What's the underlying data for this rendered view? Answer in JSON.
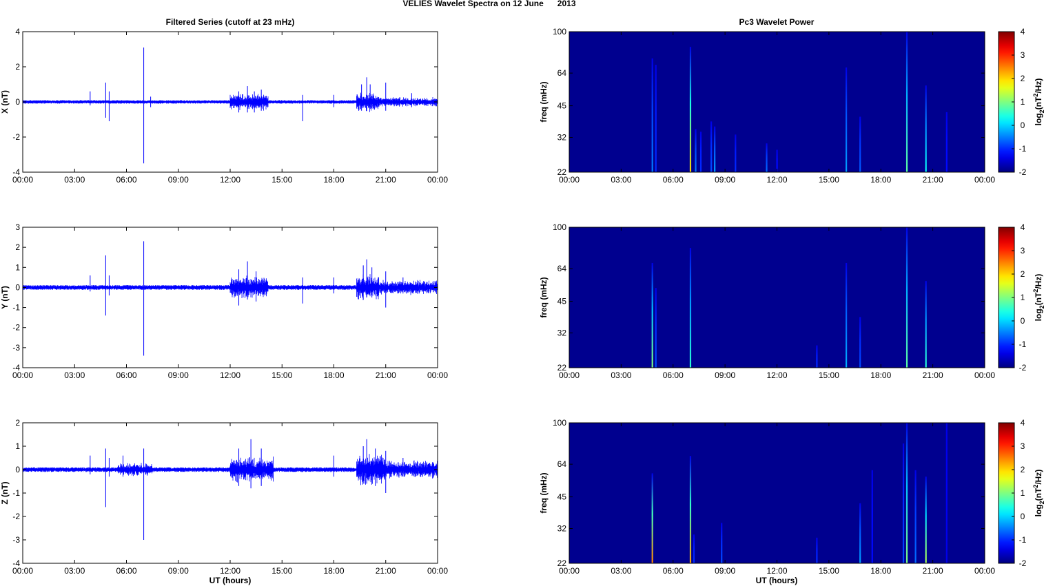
{
  "figure": {
    "title": "VELIES Wavelet Spectra on 12 June      2013",
    "left_column_title": "Filtered Series (cutoff at 23 mHz)",
    "right_column_title": "Pc3 Wavelet Power",
    "x_label": "UT (hours)",
    "x_ticks": [
      "00:00",
      "03:00",
      "06:00",
      "09:00",
      "12:00",
      "15:00",
      "18:00",
      "21:00",
      "00:00"
    ],
    "freq_label": "freq (mHz)",
    "freq_ticks": [
      "100",
      "64",
      "45",
      "32",
      "22"
    ],
    "colorbar_label": "log2(nT2/Hz)",
    "colorbar_ticks": [
      "4",
      "3",
      "2",
      "1",
      "0",
      "-1",
      "-2"
    ]
  },
  "colors": {
    "series": "#0000ff",
    "spectrum_background": "#00008f",
    "colormap": "jet"
  },
  "chart_data": [
    {
      "type": "line",
      "panel": "X",
      "ylabel": "X (nT)",
      "yticks": [
        "4",
        "2",
        "0",
        "-2",
        "-4"
      ],
      "ylim": [
        -4,
        4
      ],
      "xlim_hours": [
        0,
        24
      ],
      "baseline_noise_nT": 0.1,
      "spikes": [
        {
          "t": 3.9,
          "hi": 0.6,
          "lo": -0.2
        },
        {
          "t": 4.8,
          "hi": 1.1,
          "lo": -0.9
        },
        {
          "t": 5.0,
          "hi": 0.6,
          "lo": -1.1
        },
        {
          "t": 7.0,
          "hi": 3.1,
          "lo": -3.5
        },
        {
          "t": 7.4,
          "hi": 0.3,
          "lo": -0.3
        },
        {
          "t": 12.5,
          "hi": 0.6,
          "lo": -0.6
        },
        {
          "t": 13.0,
          "hi": 0.9,
          "lo": -0.6
        },
        {
          "t": 13.4,
          "hi": 0.6,
          "lo": -0.6
        },
        {
          "t": 13.8,
          "hi": 0.7,
          "lo": -0.5
        },
        {
          "t": 16.2,
          "hi": 0.4,
          "lo": -1.1
        },
        {
          "t": 18.0,
          "hi": 0.4,
          "lo": -0.3
        },
        {
          "t": 19.6,
          "hi": 1.0,
          "lo": -0.5
        },
        {
          "t": 19.9,
          "hi": 1.4,
          "lo": -0.5
        },
        {
          "t": 20.1,
          "hi": 1.0,
          "lo": -0.4
        },
        {
          "t": 21.0,
          "hi": 1.1,
          "lo": -0.5
        },
        {
          "t": 22.5,
          "hi": 0.5,
          "lo": -0.3
        }
      ],
      "bursts": [
        {
          "t0": 12.0,
          "t1": 14.2,
          "amp": 0.5
        },
        {
          "t0": 19.3,
          "t1": 20.6,
          "amp": 0.6
        },
        {
          "t0": 20.6,
          "t1": 24.0,
          "amp": 0.3
        }
      ]
    },
    {
      "type": "line",
      "panel": "Y",
      "ylabel": "Y (nT)",
      "yticks": [
        "3",
        "2",
        "1",
        "0",
        "-1",
        "-2",
        "-3",
        "-4"
      ],
      "ylim": [
        -4,
        3
      ],
      "xlim_hours": [
        0,
        24
      ],
      "baseline_noise_nT": 0.12,
      "spikes": [
        {
          "t": 3.9,
          "hi": 0.6,
          "lo": -0.2
        },
        {
          "t": 4.8,
          "hi": 1.6,
          "lo": -1.4
        },
        {
          "t": 5.0,
          "hi": 0.6,
          "lo": -0.4
        },
        {
          "t": 7.0,
          "hi": 2.3,
          "lo": -3.4
        },
        {
          "t": 12.5,
          "hi": 0.9,
          "lo": -0.9
        },
        {
          "t": 13.0,
          "hi": 1.3,
          "lo": -0.6
        },
        {
          "t": 13.5,
          "hi": 0.8,
          "lo": -0.7
        },
        {
          "t": 16.2,
          "hi": 0.5,
          "lo": -0.8
        },
        {
          "t": 18.0,
          "hi": 0.5,
          "lo": -0.3
        },
        {
          "t": 19.7,
          "hi": 1.1,
          "lo": -0.6
        },
        {
          "t": 19.9,
          "hi": 1.4,
          "lo": -0.5
        },
        {
          "t": 20.2,
          "hi": 1.0,
          "lo": -0.5
        },
        {
          "t": 21.0,
          "hi": 0.8,
          "lo": -1.0
        },
        {
          "t": 22.0,
          "hi": 0.5,
          "lo": -0.3
        }
      ],
      "bursts": [
        {
          "t0": 12.0,
          "t1": 14.2,
          "amp": 0.6
        },
        {
          "t0": 19.3,
          "t1": 20.6,
          "amp": 0.7
        },
        {
          "t0": 20.6,
          "t1": 24.0,
          "amp": 0.4
        }
      ]
    },
    {
      "type": "line",
      "panel": "Z",
      "ylabel": "Z (nT)",
      "yticks": [
        "2",
        "1",
        "0",
        "-1",
        "-2",
        "-3",
        "-4"
      ],
      "ylim": [
        -4,
        2
      ],
      "xlim_hours": [
        0,
        24
      ],
      "baseline_noise_nT": 0.1,
      "spikes": [
        {
          "t": 3.9,
          "hi": 0.6,
          "lo": -0.2
        },
        {
          "t": 4.8,
          "hi": 0.9,
          "lo": -1.6
        },
        {
          "t": 5.0,
          "hi": 0.5,
          "lo": -0.3
        },
        {
          "t": 5.8,
          "hi": 0.6,
          "lo": -0.3
        },
        {
          "t": 7.0,
          "hi": 0.9,
          "lo": -3.0
        },
        {
          "t": 12.5,
          "hi": 0.9,
          "lo": -0.7
        },
        {
          "t": 13.2,
          "hi": 1.3,
          "lo": -0.8
        },
        {
          "t": 13.8,
          "hi": 0.9,
          "lo": -0.7
        },
        {
          "t": 18.0,
          "hi": 0.6,
          "lo": -0.3
        },
        {
          "t": 19.7,
          "hi": 1.0,
          "lo": -0.6
        },
        {
          "t": 19.9,
          "hi": 1.3,
          "lo": -0.6
        },
        {
          "t": 20.4,
          "hi": 0.9,
          "lo": -0.7
        },
        {
          "t": 21.0,
          "hi": 0.8,
          "lo": -1.0
        },
        {
          "t": 22.0,
          "hi": 0.5,
          "lo": -0.3
        }
      ],
      "bursts": [
        {
          "t0": 5.5,
          "t1": 7.5,
          "amp": 0.3
        },
        {
          "t0": 12.0,
          "t1": 14.5,
          "amp": 0.6
        },
        {
          "t0": 19.3,
          "t1": 21.0,
          "amp": 0.7
        },
        {
          "t0": 21.0,
          "t1": 24.0,
          "amp": 0.4
        }
      ]
    },
    {
      "type": "heatmap",
      "panel": "X",
      "ylabel": "freq (mHz)",
      "ylim_mHz": [
        22,
        100
      ],
      "clim": [
        -2,
        4
      ],
      "background_level": -2,
      "streaks": [
        {
          "t": 4.8,
          "f_top": 75,
          "level": -0.5
        },
        {
          "t": 5.0,
          "f_top": 70,
          "level": -1.0
        },
        {
          "t": 7.0,
          "f_top": 85,
          "level": 2.0
        },
        {
          "t": 7.3,
          "f_top": 35,
          "level": -0.5
        },
        {
          "t": 7.6,
          "f_top": 34,
          "level": -1.0
        },
        {
          "t": 8.2,
          "f_top": 38,
          "level": -0.8
        },
        {
          "t": 8.4,
          "f_top": 36,
          "level": -0.3
        },
        {
          "t": 9.6,
          "f_top": 33,
          "level": -1.0
        },
        {
          "t": 11.4,
          "f_top": 30,
          "level": -0.6
        },
        {
          "t": 12.0,
          "f_top": 28,
          "level": -1.2
        },
        {
          "t": 16.0,
          "f_top": 68,
          "level": -0.3
        },
        {
          "t": 16.8,
          "f_top": 40,
          "level": -0.7
        },
        {
          "t": 19.5,
          "f_top": 100,
          "level": 0.8
        },
        {
          "t": 20.6,
          "f_top": 56,
          "level": 0.3
        },
        {
          "t": 21.8,
          "f_top": 42,
          "level": -1.2
        }
      ]
    },
    {
      "type": "heatmap",
      "panel": "Y",
      "ylabel": "freq (mHz)",
      "ylim_mHz": [
        22,
        100
      ],
      "clim": [
        -2,
        4
      ],
      "background_level": -2,
      "streaks": [
        {
          "t": 4.8,
          "f_top": 68,
          "level": 1.0
        },
        {
          "t": 5.0,
          "f_top": 52,
          "level": -0.8
        },
        {
          "t": 7.0,
          "f_top": 80,
          "level": 0.5
        },
        {
          "t": 14.3,
          "f_top": 28,
          "level": -1.0
        },
        {
          "t": 16.0,
          "f_top": 68,
          "level": -0.2
        },
        {
          "t": 16.8,
          "f_top": 38,
          "level": -0.8
        },
        {
          "t": 19.5,
          "f_top": 100,
          "level": 0.8
        },
        {
          "t": 20.6,
          "f_top": 56,
          "level": 0.5
        }
      ]
    },
    {
      "type": "heatmap",
      "panel": "Z",
      "ylabel": "freq (mHz)",
      "ylim_mHz": [
        22,
        100
      ],
      "clim": [
        -2,
        4
      ],
      "background_level": -2,
      "streaks": [
        {
          "t": 4.8,
          "f_top": 58,
          "level": 2.5
        },
        {
          "t": 7.0,
          "f_top": 70,
          "level": 2.3
        },
        {
          "t": 7.2,
          "f_top": 30,
          "level": -1.0
        },
        {
          "t": 8.8,
          "f_top": 34,
          "level": -0.8
        },
        {
          "t": 14.3,
          "f_top": 29,
          "level": -1.0
        },
        {
          "t": 16.8,
          "f_top": 42,
          "level": -0.3
        },
        {
          "t": 17.5,
          "f_top": 60,
          "level": -1.2
        },
        {
          "t": 19.3,
          "f_top": 80,
          "level": -0.8
        },
        {
          "t": 19.5,
          "f_top": 100,
          "level": 1.0
        },
        {
          "t": 20.0,
          "f_top": 60,
          "level": -0.6
        },
        {
          "t": 20.6,
          "f_top": 56,
          "level": 1.3
        },
        {
          "t": 21.8,
          "f_top": 100,
          "level": -1.4
        }
      ]
    }
  ]
}
